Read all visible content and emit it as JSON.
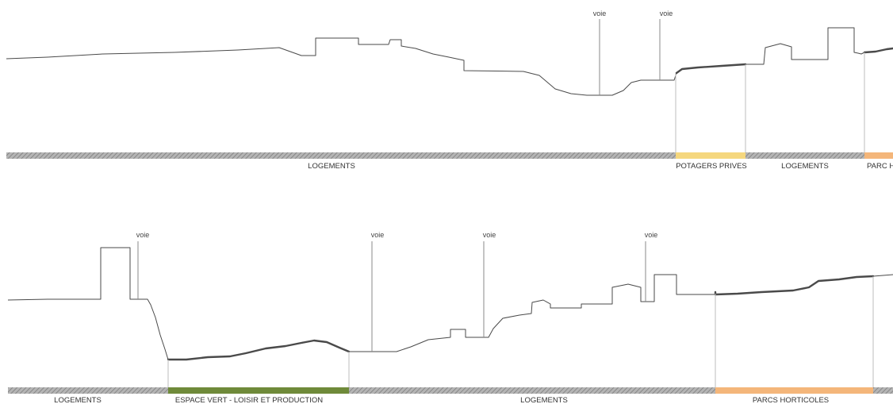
{
  "sections": [
    {
      "voie_labels": [
        "voie",
        "voie"
      ],
      "zones": [
        {
          "label": "LOGEMENTS",
          "color": "#9a9a9a",
          "hatched": true
        },
        {
          "label": "POTAGERS PRIVES",
          "color": "#f5d77e",
          "hatched": false
        },
        {
          "label": "LOGEMENTS",
          "color": "#9a9a9a",
          "hatched": true
        },
        {
          "label": "PARC H",
          "color": "#f4b67a",
          "hatched": false
        }
      ]
    },
    {
      "voie_labels": [
        "voie",
        "voie",
        "voie",
        "voie"
      ],
      "zones": [
        {
          "label": "LOGEMENTS",
          "color": "#9a9a9a",
          "hatched": true
        },
        {
          "label": "ESPACE VERT - LOISIR ET PRODUCTION",
          "color": "#6f8a3a",
          "hatched": false
        },
        {
          "label": "LOGEMENTS",
          "color": "#9a9a9a",
          "hatched": true
        },
        {
          "label": "PARCS HORTICOLES",
          "color": "#f4b67a",
          "hatched": false
        },
        {
          "label": "",
          "color": "#9a9a9a",
          "hatched": true
        }
      ]
    }
  ]
}
